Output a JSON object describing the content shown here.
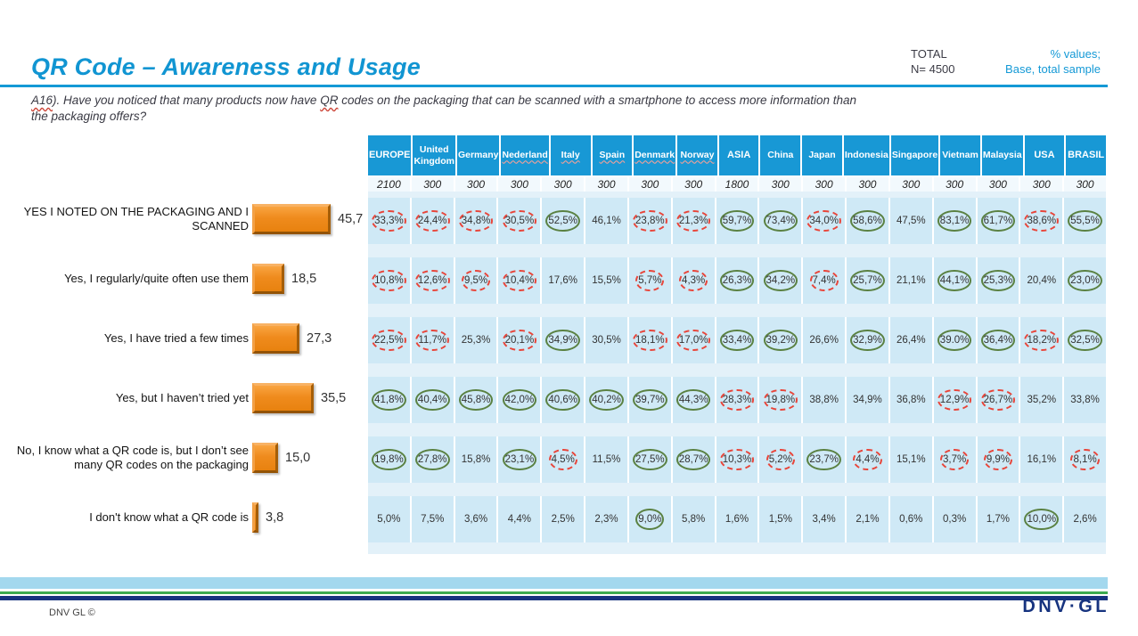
{
  "header": {
    "title": "QR Code – Awareness and Usage",
    "total_label": "TOTAL",
    "total_n": "N= 4500",
    "values_note_line1": "% values;",
    "values_note_line2": "Base, total sample"
  },
  "question": {
    "code": "A16",
    "part1": "). Have you noticed that many products now have ",
    "qr": "QR",
    "part2": " codes on the packaging that can be scanned with a smartphone to access more information than the packaging offers?"
  },
  "footer": {
    "copyright": "DNV GL ©",
    "logo": "DNV·GL"
  },
  "chart_data": {
    "type": "table",
    "title": "QR Code – Awareness and Usage",
    "bar_color": "#ef8b1d",
    "header_bg": "#1898d5",
    "cell_bg": "#cfe9f6",
    "mark_colors": {
      "red": "#e8453a",
      "green": "#5a8142"
    },
    "bar_pixels_per_unit": 1.93,
    "columns": [
      {
        "label": "EUROPE",
        "n": "2100",
        "bold": true,
        "underline": false
      },
      {
        "label": "United Kingdom",
        "n": "300",
        "bold": false,
        "underline": false
      },
      {
        "label": "Germany",
        "n": "300",
        "bold": false,
        "underline": false
      },
      {
        "label": "Nederland",
        "n": "300",
        "bold": false,
        "underline": true
      },
      {
        "label": "Italy",
        "n": "300",
        "bold": false,
        "underline": true
      },
      {
        "label": "Spain",
        "n": "300",
        "bold": false,
        "underline": true
      },
      {
        "label": "Denmark",
        "n": "300",
        "bold": false,
        "underline": true
      },
      {
        "label": "Norway",
        "n": "300",
        "bold": false,
        "underline": true
      },
      {
        "label": "ASIA",
        "n": "1800",
        "bold": true,
        "underline": false
      },
      {
        "label": "China",
        "n": "300",
        "bold": false,
        "underline": false
      },
      {
        "label": "Japan",
        "n": "300",
        "bold": false,
        "underline": false
      },
      {
        "label": "Indonesia",
        "n": "300",
        "bold": false,
        "underline": false
      },
      {
        "label": "Singapore",
        "n": "300",
        "bold": false,
        "underline": false
      },
      {
        "label": "Vietnam",
        "n": "300",
        "bold": false,
        "underline": false
      },
      {
        "label": "Malaysia",
        "n": "300",
        "bold": false,
        "underline": false
      },
      {
        "label": "USA",
        "n": "300",
        "bold": true,
        "underline": false
      },
      {
        "label": "BRASIL",
        "n": "300",
        "bold": true,
        "underline": false
      }
    ],
    "rows": [
      {
        "label": "YES I NOTED ON THE PACKAGING AND I SCANNED",
        "total_value": 45.7,
        "total_display": "45,7",
        "values": [
          "33,3%",
          "24,4%",
          "34,8%",
          "30,5%",
          "52,5%",
          "46,1%",
          "23,8%",
          "21,3%",
          "59,7%",
          "73,4%",
          "34,0%",
          "58,6%",
          "47,5%",
          "83,1%",
          "61,7%",
          "38,6%",
          "55,5%"
        ],
        "marks": [
          "red",
          "red",
          "red",
          "red",
          "green",
          null,
          "red",
          "red",
          "green",
          "green",
          "red",
          "green",
          null,
          "green",
          "green",
          "red",
          "green"
        ]
      },
      {
        "label": "Yes, I regularly/quite often use them",
        "total_value": 18.5,
        "total_display": "18,5",
        "values": [
          "10,8%",
          "12,6%",
          "9,5%",
          "10,4%",
          "17,6%",
          "15,5%",
          "5,7%",
          "4,3%",
          "26,3%",
          "34,2%",
          "7,4%",
          "25,7%",
          "21,1%",
          "44,1%",
          "25,3%",
          "20,4%",
          "23,0%"
        ],
        "marks": [
          "red",
          "red",
          "red",
          "red",
          null,
          null,
          "red",
          "red",
          "green",
          "green",
          "red",
          "green",
          null,
          "green",
          "green",
          null,
          "green"
        ]
      },
      {
        "label": "Yes, I have tried a few times",
        "total_value": 27.3,
        "total_display": "27,3",
        "values": [
          "22,5%",
          "11,7%",
          "25,3%",
          "20,1%",
          "34,9%",
          "30,5%",
          "18,1%",
          "17,0%",
          "33,4%",
          "39,2%",
          "26,6%",
          "32,9%",
          "26,4%",
          "39.0%",
          "36,4%",
          "18,2%",
          "32,5%"
        ],
        "marks": [
          "red",
          "red",
          null,
          "red",
          "green",
          null,
          "red",
          "red",
          "green",
          "green",
          null,
          "green",
          null,
          "green",
          "green",
          "red",
          "green"
        ]
      },
      {
        "label": "Yes, but I haven’t tried yet",
        "total_value": 35.5,
        "total_display": "35,5",
        "values": [
          "41,8%",
          "40,4%",
          "45,8%",
          "42,0%",
          "40,6%",
          "40,2%",
          "39,7%",
          "44,3%",
          "28,3%",
          "19,8%",
          "38,8%",
          "34,9%",
          "36,8%",
          "12,9%",
          "26,7%",
          "35,2%",
          "33,8%"
        ],
        "marks": [
          "green",
          "green",
          "green",
          "green",
          "green",
          "green",
          "green",
          "green",
          "red",
          "red",
          null,
          null,
          null,
          "red",
          "red",
          null,
          null
        ]
      },
      {
        "label": "No, I know what a QR code is, but I don’t see many QR codes on the packaging",
        "total_value": 15.0,
        "total_display": "15,0",
        "values": [
          "19,8%",
          "27,8%",
          "15,8%",
          "23,1%",
          "4,5%",
          "11,5%",
          "27,5%",
          "28,7%",
          "10,3%",
          "5,2%",
          "23,7%",
          "4,4%",
          "15,1%",
          "3,7%",
          "9,9%",
          "16,1%",
          "8,1%"
        ],
        "marks": [
          "green",
          "green",
          null,
          "green",
          "red",
          null,
          "green",
          "green",
          "red",
          "red",
          "green",
          "red",
          null,
          "red",
          "red",
          null,
          "red"
        ]
      },
      {
        "label": "I don't know what a QR code is",
        "total_value": 3.8,
        "total_display": "3,8",
        "values": [
          "5,0%",
          "7,5%",
          "3,6%",
          "4,4%",
          "2,5%",
          "2,3%",
          "9,0%",
          "5,8%",
          "1,6%",
          "1,5%",
          "3,4%",
          "2,1%",
          "0,6%",
          "0,3%",
          "1,7%",
          "10,0%",
          "2,6%"
        ],
        "marks": [
          null,
          null,
          null,
          null,
          null,
          null,
          "green",
          null,
          null,
          null,
          null,
          null,
          null,
          null,
          null,
          "green",
          null
        ]
      }
    ]
  }
}
